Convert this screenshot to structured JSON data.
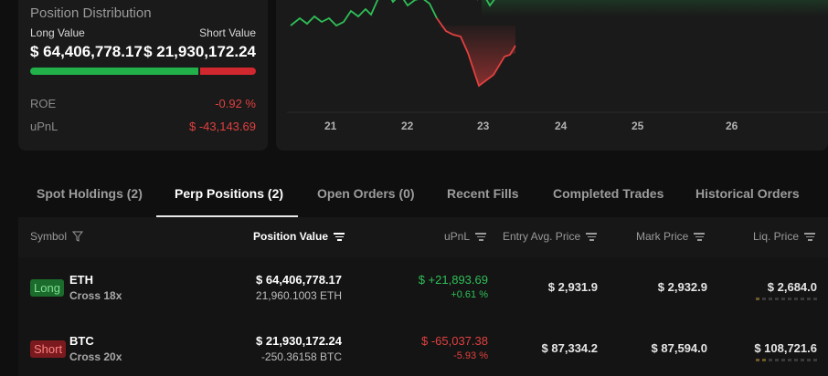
{
  "position_distribution": {
    "title": "Position Distribution",
    "long_label": "Long Value",
    "short_label": "Short Value",
    "long_value": "$ 64,406,778.17",
    "short_value": "$ 21,930,172.24",
    "long_fraction": 0.746,
    "roe_label": "ROE",
    "roe_value": "-0.92 %",
    "upnl_label": "uPnL",
    "upnl_value": "$ -43,143.69"
  },
  "chart": {
    "x_ticks": [
      "21",
      "22",
      "23",
      "24",
      "25",
      "26"
    ],
    "colors": {
      "positive": "#2fbf57",
      "negative": "#e0403f"
    }
  },
  "tabs": [
    {
      "label": "Spot Holdings (2)",
      "active": false
    },
    {
      "label": "Perp Positions (2)",
      "active": true
    },
    {
      "label": "Open Orders (0)",
      "active": false
    },
    {
      "label": "Recent Fills",
      "active": false
    },
    {
      "label": "Completed Trades",
      "active": false
    },
    {
      "label": "Historical Orders",
      "active": false
    }
  ],
  "table": {
    "headers": {
      "symbol": "Symbol",
      "position_value": "Position Value",
      "upnl": "uPnL",
      "entry": "Entry Avg. Price",
      "mark": "Mark Price",
      "liq": "Liq. Price"
    },
    "rows": [
      {
        "side": "Long",
        "symbol": "ETH",
        "leverage": "Cross 18x",
        "position_value": "$ 64,406,778.17",
        "position_size": "21,960.1003 ETH",
        "upnl": "$ +21,893.69",
        "upnl_pct": "+0.61 %",
        "entry_price": "$ 2,931.9",
        "mark_price": "$ 2,932.9",
        "liq_price": "$ 2,684.0"
      },
      {
        "side": "Short",
        "symbol": "BTC",
        "leverage": "Cross 20x",
        "position_value": "$ 21,930,172.24",
        "position_size": "-250.36158 BTC",
        "upnl": "$ -65,037.38",
        "upnl_pct": "-5.93 %",
        "entry_price": "$ 87,334.2",
        "mark_price": "$ 87,594.0",
        "liq_price": "$ 108,721.6"
      }
    ]
  }
}
